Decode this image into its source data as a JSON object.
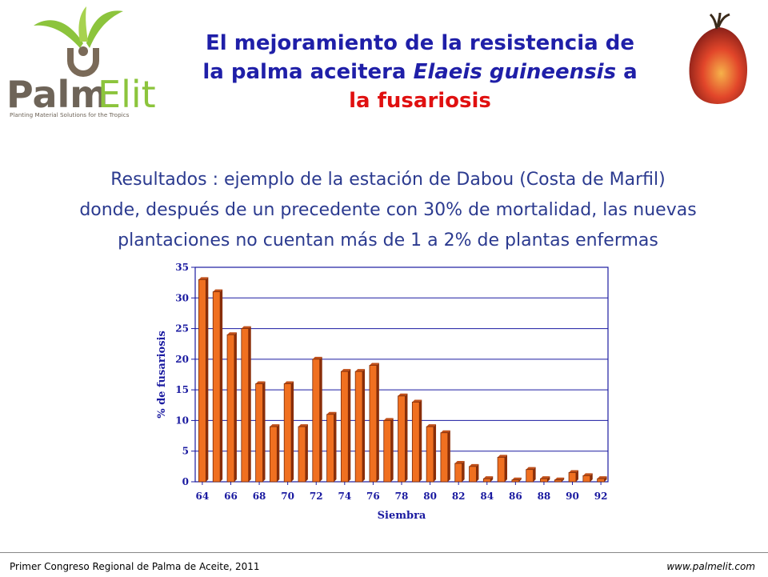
{
  "logo": {
    "brand_palm": "Palm",
    "brand_elit": "Elit",
    "tagline": "Planting Material Solutions for the Tropics"
  },
  "header": {
    "title_part1": "El mejoramiento de la resistencia de",
    "title_part2a": "la palma aceitera ",
    "title_part2b": "Elaeis guineensis",
    "title_part2c": " a",
    "title_part3": "la fusariosis"
  },
  "body": {
    "line1": "Resultados : ejemplo de la estación de Dabou (Costa de Marfil)",
    "line2": "donde, después de un precedente con 30% de mortalidad, las nuevas",
    "line3": "plantaciones no cuentan más de 1 a 2% de plantas enfermas"
  },
  "footer": {
    "left": "Primer Congreso Regional de Palma de Aceite, 2011",
    "right": "www.palmelit.com"
  },
  "colors": {
    "title_blue": "#1f1fa8",
    "title_red": "#e01010",
    "bar_fill": "#f07020",
    "axis_text": "#1a1aa0",
    "subtitle": "#2b3a8f"
  },
  "chart_data": {
    "type": "bar",
    "xlabel": "Siembra",
    "ylabel": "% de fusariosis",
    "ylim": [
      0,
      35
    ],
    "yticks": [
      0,
      5,
      10,
      15,
      20,
      25,
      30,
      35
    ],
    "grid": true,
    "categories": [
      "64",
      "65",
      "66",
      "67",
      "68",
      "69",
      "70",
      "71",
      "72",
      "73",
      "74",
      "75",
      "76",
      "77",
      "78",
      "79",
      "80",
      "81",
      "82",
      "83",
      "84",
      "85",
      "86",
      "87",
      "88",
      "89",
      "90",
      "91",
      "92"
    ],
    "xtick_labels": [
      "64",
      "66",
      "68",
      "70",
      "72",
      "74",
      "76",
      "78",
      "80",
      "82",
      "84",
      "86",
      "88",
      "90",
      "92"
    ],
    "values": [
      33,
      31,
      24,
      25,
      16,
      9,
      16,
      9,
      20,
      11,
      18,
      18,
      19,
      10,
      14,
      13,
      9,
      8,
      3,
      2.5,
      0.5,
      4,
      0.3,
      2,
      0.5,
      0.3,
      1.5,
      1,
      0.5
    ]
  }
}
